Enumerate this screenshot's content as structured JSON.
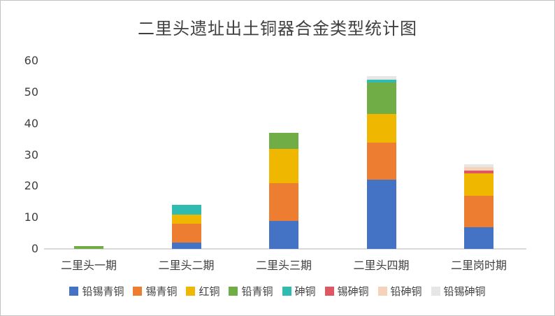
{
  "chart_data": {
    "type": "bar",
    "stacked": true,
    "title": "二里头遗址出土铜器合金类型统计图",
    "categories": [
      "二里头一期",
      "二里头二期",
      "二里头三期",
      "二里头四期",
      "二里岗时期"
    ],
    "series": [
      {
        "name": "铅锡青铜",
        "color": "#4472c4",
        "values": [
          0,
          2,
          9,
          22,
          7
        ]
      },
      {
        "name": "锡青铜",
        "color": "#ed7d31",
        "values": [
          0,
          6,
          12,
          12,
          10
        ]
      },
      {
        "name": "红铜",
        "color": "#efb700",
        "values": [
          0,
          3,
          11,
          9,
          7
        ]
      },
      {
        "name": "铅青铜",
        "color": "#70ad47",
        "values": [
          1,
          0,
          5,
          10,
          0
        ]
      },
      {
        "name": "砷铜",
        "color": "#2fbbaf",
        "values": [
          0,
          3,
          0,
          1,
          0
        ]
      },
      {
        "name": "锡砷铜",
        "color": "#e05764",
        "values": [
          0,
          0,
          0,
          0,
          1
        ]
      },
      {
        "name": "铅砷铜",
        "color": "#f7d2ba",
        "values": [
          0,
          0,
          0,
          0,
          1
        ]
      },
      {
        "name": "铅锡砷铜",
        "color": "#e7e6e6",
        "values": [
          0,
          0,
          0,
          1,
          1
        ]
      }
    ],
    "totals": [
      1,
      14,
      37,
      55,
      27
    ],
    "ylim": [
      0,
      60
    ],
    "yticks": [
      0,
      10,
      20,
      30,
      40,
      50,
      60
    ],
    "grid": false,
    "legend_position": "bottom",
    "colors": {
      "title_text": "#3f3f3f",
      "axis_text": "#404040",
      "axis_line": "#d9d9d9",
      "background": "#ffffff"
    }
  }
}
